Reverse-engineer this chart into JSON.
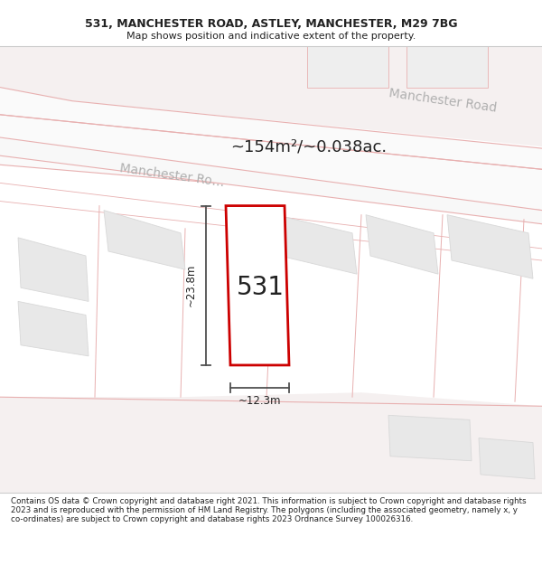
{
  "title_line1": "531, MANCHESTER ROAD, ASTLEY, MANCHESTER, M29 7BG",
  "title_line2": "Map shows position and indicative extent of the property.",
  "area_text": "~154m²/~0.038ac.",
  "label_531": "531",
  "dim_height": "~23.8m",
  "dim_width": "~12.3m",
  "road_label_ur": "Manchester Road",
  "road_label_mid": "Manchester Ro…",
  "footer_text": "Contains OS data © Crown copyright and database right 2021. This information is subject to Crown copyright and database rights 2023 and is reproduced with the permission of HM Land Registry. The polygons (including the associated geometry, namely x, y co-ordinates) are subject to Crown copyright and database rights 2023 Ordnance Survey 100026316.",
  "bg_color": "#ffffff",
  "map_bg": "#ffffff",
  "road_fill": "#f5f0f0",
  "road_line": "#e8b0b0",
  "building_fill": "#e8e8e8",
  "building_edge": "#d8d8d8",
  "green_fill": "#edf2e8",
  "prop_edge": "#cc0000",
  "dim_color": "#505050",
  "road_text_color": "#b0b0b0",
  "text_color": "#222222",
  "footer_color": "#222222",
  "title_sep_color": "#cccccc"
}
